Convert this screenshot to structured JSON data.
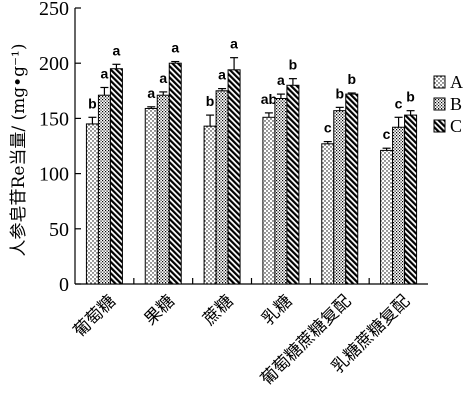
{
  "chart_data": {
    "type": "bar",
    "ylabel": "人参皂苷Re当量/ (mg•g⁻¹)",
    "ylim": [
      0,
      250
    ],
    "yticks": [
      0,
      50,
      100,
      150,
      200,
      250
    ],
    "categories": [
      "葡萄糖",
      "果糖",
      "蔗糖",
      "乳糖",
      "葡萄糖蔗糖复配",
      "乳糖蔗糖复配"
    ],
    "series": [
      {
        "name": "A",
        "pattern": "dots",
        "values": [
          145,
          159,
          143,
          151,
          127,
          121
        ],
        "errors": [
          6,
          1.5,
          10,
          4,
          2,
          2
        ],
        "labels": [
          "b",
          "a",
          "b",
          "ab",
          "c",
          "c"
        ]
      },
      {
        "name": "B",
        "pattern": "dots-dense",
        "values": [
          171,
          171,
          175,
          168,
          157,
          142
        ],
        "errors": [
          7,
          3,
          2,
          4,
          3,
          9
        ],
        "labels": [
          "a",
          "a",
          "a",
          "a",
          "b",
          "c"
        ]
      },
      {
        "name": "C",
        "pattern": "diagonal",
        "values": [
          195,
          200,
          194,
          180,
          172,
          153
        ],
        "errors": [
          4,
          1.5,
          11,
          6,
          1,
          4
        ],
        "labels": [
          "a",
          "a",
          "a",
          "b",
          "b",
          "b"
        ]
      }
    ],
    "legend": {
      "placement": "right"
    },
    "grid": false
  }
}
